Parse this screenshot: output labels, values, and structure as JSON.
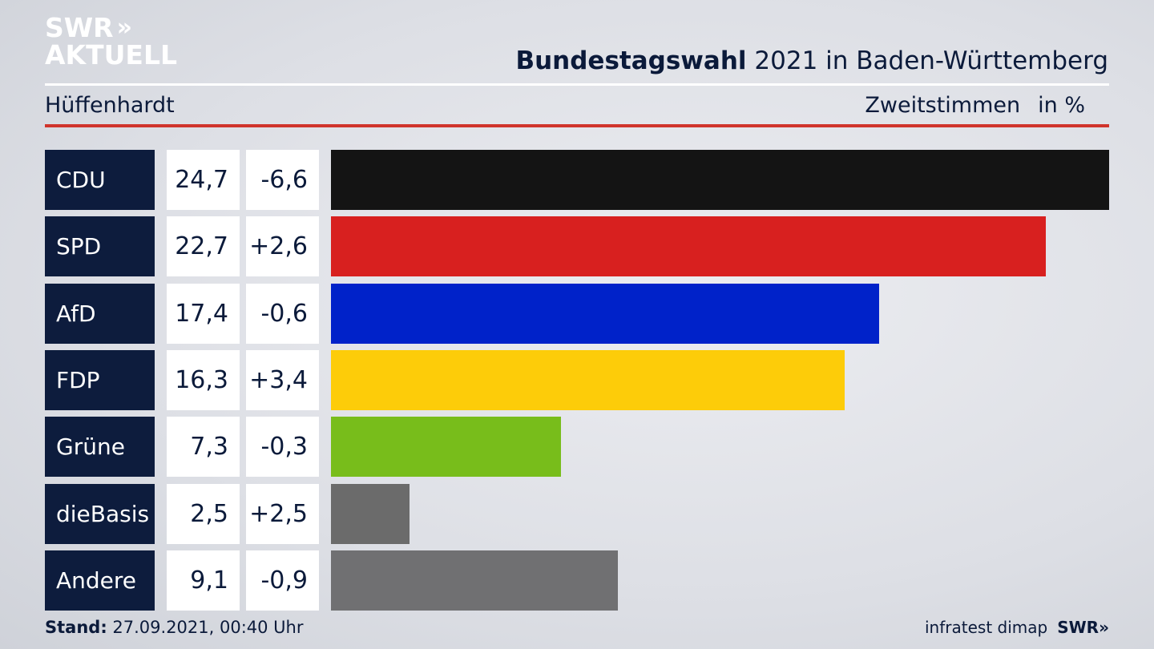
{
  "brand": {
    "logo_line1": "SWR",
    "logo_chevrons": "»",
    "logo_line2": "AKTUELL"
  },
  "header": {
    "title_bold": "Bundestagswahl",
    "title_rest": " 2021 in Baden-Württemberg",
    "region": "Hüffenhardt",
    "metric": "Zweitstimmen",
    "unit": "in %"
  },
  "chart_data": {
    "type": "bar",
    "orientation": "horizontal",
    "categories": [
      "CDU",
      "SPD",
      "AfD",
      "FDP",
      "Grüne",
      "dieBasis",
      "Andere"
    ],
    "values": [
      24.7,
      22.7,
      17.4,
      16.3,
      7.3,
      2.5,
      9.1
    ],
    "value_labels": [
      "24,7",
      "22,7",
      "17,4",
      "16,3",
      "7,3",
      "2,5",
      "9,1"
    ],
    "change_labels": [
      "-6,6",
      "+2,6",
      "-0,6",
      "+3,4",
      "-0,3",
      "+2,5",
      "-0,9"
    ],
    "colors": [
      "#141414",
      "#d8201f",
      "#0022c9",
      "#fdcc09",
      "#78bd1b",
      "#6b6b6b",
      "#707072"
    ],
    "xmax": 24.7
  },
  "footer": {
    "stand_label": "Stand:",
    "stand_value": " 27.09.2021, 00:40 Uhr",
    "source": "infratest dimap",
    "source_brand": "SWR»"
  }
}
